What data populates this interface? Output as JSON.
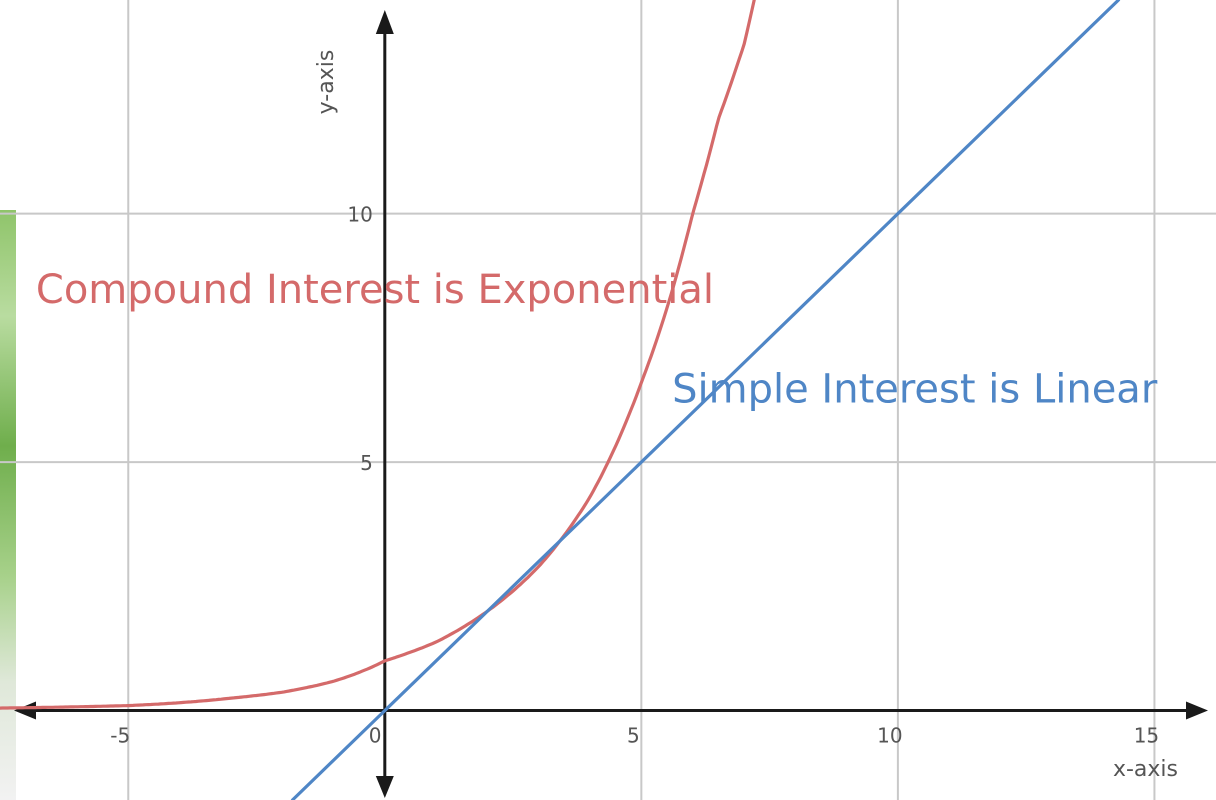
{
  "chart_data": {
    "type": "line",
    "xlabel": "x-axis",
    "ylabel": "y-axis",
    "xlim": [
      -7.5,
      16.2
    ],
    "ylim": [
      -1.8,
      14.3
    ],
    "x_ticks": [
      -5,
      0,
      5,
      10,
      15
    ],
    "y_ticks": [
      5,
      10
    ],
    "x_tick_labels": [
      "-5",
      "0",
      "5",
      "10",
      "15"
    ],
    "y_tick_labels": [
      "5",
      "10"
    ],
    "grid": true,
    "series": [
      {
        "name": "Compound Interest is Exponential",
        "color": "#d46a6a",
        "function": "exponential",
        "x": [
          -7.5,
          -5,
          -3,
          -2,
          -1,
          0,
          1,
          2,
          3,
          4,
          5,
          5.5,
          6,
          6.5,
          7,
          7.2
        ],
        "y": [
          0.05,
          0.1,
          0.25,
          0.37,
          0.59,
          1.0,
          1.38,
          2.0,
          2.9,
          4.3,
          6.6,
          8.1,
          10.0,
          11.9,
          13.4,
          14.3
        ]
      },
      {
        "name": "Simple Interest is Linear",
        "color": "#4f86c6",
        "function": "linear",
        "x": [
          -1.8,
          14.3
        ],
        "y": [
          -1.8,
          14.3
        ]
      }
    ],
    "annotations": [
      {
        "text": "Compound Interest is Exponential",
        "color": "#d46a6a",
        "x": -6.8,
        "y": 8.2
      },
      {
        "text": "Simple Interest is Linear",
        "color": "#4f86c6",
        "x": 5.6,
        "y": 6.2
      }
    ]
  }
}
